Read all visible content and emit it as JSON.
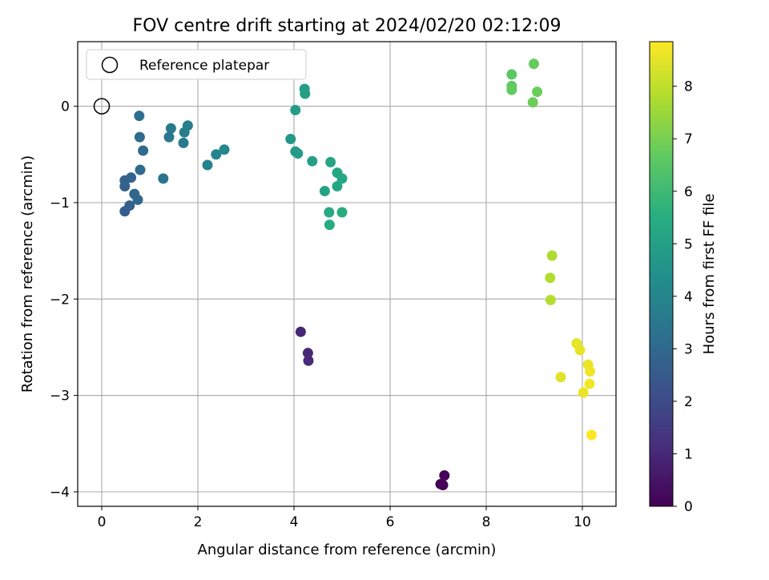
{
  "chart_data": {
    "type": "scatter",
    "title": "FOV centre drift starting at 2024/02/20 02:12:09",
    "xlabel": "Angular distance from reference (arcmin)",
    "ylabel": "Rotation from reference (arcmin)",
    "xlim": [
      -0.5,
      10.7
    ],
    "ylim": [
      -4.15,
      0.67
    ],
    "xticks": [
      0,
      2,
      4,
      6,
      8,
      10
    ],
    "yticks": [
      0,
      -1,
      -2,
      -3,
      -4
    ],
    "grid": true,
    "legend": {
      "position": "top-left",
      "entries": [
        "Reference platepar"
      ]
    },
    "reference_point": {
      "x": 0,
      "y": 0
    },
    "colorbar": {
      "label": "Hours from first FF file",
      "min": 0,
      "max": 8.85,
      "ticks": [
        0,
        1,
        2,
        3,
        4,
        5,
        6,
        7,
        8
      ],
      "colormap": "viridis"
    },
    "points": [
      {
        "x": 7.05,
        "y": -3.92,
        "h": 0.0
      },
      {
        "x": 7.13,
        "y": -3.83,
        "h": 0.05
      },
      {
        "x": 7.1,
        "y": -3.93,
        "h": 0.1
      },
      {
        "x": 4.14,
        "y": -2.34,
        "h": 0.95
      },
      {
        "x": 4.29,
        "y": -2.56,
        "h": 1.0
      },
      {
        "x": 4.3,
        "y": -2.64,
        "h": 1.05
      },
      {
        "x": 0.48,
        "y": -1.09,
        "h": 2.6
      },
      {
        "x": 0.58,
        "y": -1.03,
        "h": 2.7
      },
      {
        "x": 0.48,
        "y": -0.83,
        "h": 2.75
      },
      {
        "x": 0.48,
        "y": -0.77,
        "h": 2.8
      },
      {
        "x": 0.61,
        "y": -0.74,
        "h": 2.85
      },
      {
        "x": 0.68,
        "y": -0.91,
        "h": 2.9
      },
      {
        "x": 0.75,
        "y": -0.97,
        "h": 2.95
      },
      {
        "x": 0.8,
        "y": -0.66,
        "h": 3.0
      },
      {
        "x": 0.86,
        "y": -0.46,
        "h": 3.05
      },
      {
        "x": 0.79,
        "y": -0.32,
        "h": 3.1
      },
      {
        "x": 0.78,
        "y": -0.1,
        "h": 3.2
      },
      {
        "x": 1.28,
        "y": -0.75,
        "h": 3.4
      },
      {
        "x": 1.4,
        "y": -0.32,
        "h": 3.5
      },
      {
        "x": 1.44,
        "y": -0.23,
        "h": 3.6
      },
      {
        "x": 1.7,
        "y": -0.38,
        "h": 3.65
      },
      {
        "x": 1.72,
        "y": -0.27,
        "h": 3.7
      },
      {
        "x": 1.79,
        "y": -0.2,
        "h": 3.75
      },
      {
        "x": 2.2,
        "y": -0.61,
        "h": 3.9
      },
      {
        "x": 2.38,
        "y": -0.5,
        "h": 4.0
      },
      {
        "x": 2.55,
        "y": -0.45,
        "h": 4.1
      },
      {
        "x": 3.93,
        "y": -0.34,
        "h": 4.7
      },
      {
        "x": 4.03,
        "y": -0.47,
        "h": 4.75
      },
      {
        "x": 4.08,
        "y": -0.49,
        "h": 4.8
      },
      {
        "x": 4.03,
        "y": -0.04,
        "h": 4.85
      },
      {
        "x": 4.22,
        "y": 0.18,
        "h": 4.9
      },
      {
        "x": 4.23,
        "y": 0.13,
        "h": 4.95
      },
      {
        "x": 4.38,
        "y": -0.57,
        "h": 5.0
      },
      {
        "x": 4.64,
        "y": -0.88,
        "h": 5.1
      },
      {
        "x": 4.76,
        "y": -0.58,
        "h": 5.15
      },
      {
        "x": 4.9,
        "y": -0.69,
        "h": 5.2
      },
      {
        "x": 4.9,
        "y": -0.83,
        "h": 5.25
      },
      {
        "x": 5.0,
        "y": -0.75,
        "h": 5.3
      },
      {
        "x": 4.73,
        "y": -1.1,
        "h": 5.35
      },
      {
        "x": 4.74,
        "y": -1.23,
        "h": 5.4
      },
      {
        "x": 5.0,
        "y": -1.1,
        "h": 5.45
      },
      {
        "x": 8.53,
        "y": 0.33,
        "h": 6.6
      },
      {
        "x": 8.53,
        "y": 0.21,
        "h": 6.65
      },
      {
        "x": 8.53,
        "y": 0.17,
        "h": 6.7
      },
      {
        "x": 8.99,
        "y": 0.44,
        "h": 6.75
      },
      {
        "x": 9.06,
        "y": 0.15,
        "h": 6.8
      },
      {
        "x": 8.97,
        "y": 0.04,
        "h": 6.85
      },
      {
        "x": 9.37,
        "y": -1.55,
        "h": 7.75
      },
      {
        "x": 9.33,
        "y": -1.78,
        "h": 7.8
      },
      {
        "x": 9.34,
        "y": -2.01,
        "h": 7.85
      },
      {
        "x": 9.88,
        "y": -2.46,
        "h": 8.5
      },
      {
        "x": 9.95,
        "y": -2.53,
        "h": 8.55
      },
      {
        "x": 9.55,
        "y": -2.81,
        "h": 8.45
      },
      {
        "x": 10.12,
        "y": -2.68,
        "h": 8.6
      },
      {
        "x": 10.16,
        "y": -2.75,
        "h": 8.65
      },
      {
        "x": 10.15,
        "y": -2.88,
        "h": 8.7
      },
      {
        "x": 10.02,
        "y": -2.97,
        "h": 8.6
      },
      {
        "x": 10.19,
        "y": -3.41,
        "h": 8.85
      }
    ]
  }
}
